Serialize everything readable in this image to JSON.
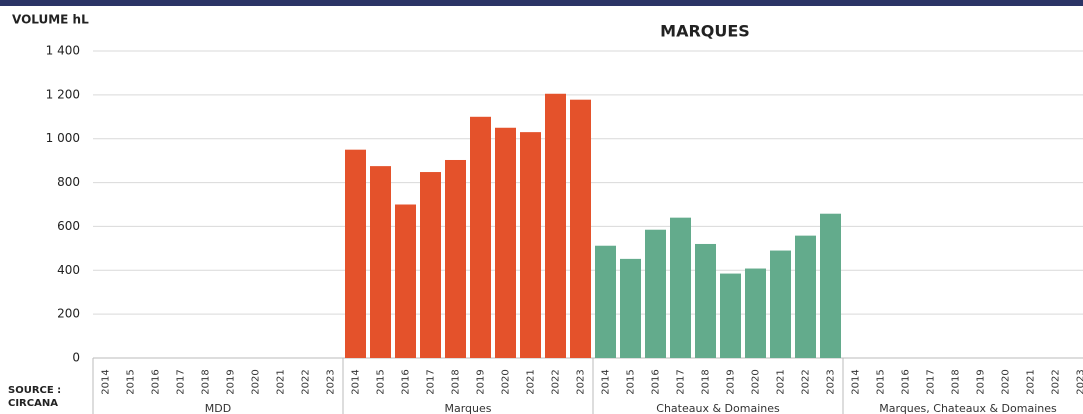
{
  "chart_data": {
    "type": "bar",
    "title": "MARQUES",
    "y_label": "VOLUME hL",
    "source": "SOURCE : CIRCANA",
    "ylim": [
      0,
      1400
    ],
    "yticks": [
      0,
      200,
      400,
      600,
      800,
      {
        "value": 1000,
        "label": "1 000"
      },
      {
        "value": 1200,
        "label": "1 200"
      },
      {
        "value": 1400,
        "label": "1 400"
      }
    ],
    "grid": true,
    "groups": [
      {
        "label": "MDD",
        "color": "#e4522b",
        "categories": [
          "2014",
          "2015",
          "2016",
          "2017",
          "2018",
          "2019",
          "2020",
          "2021",
          "2022",
          "2023"
        ],
        "values": [
          null,
          null,
          null,
          null,
          null,
          null,
          null,
          null,
          null,
          null
        ]
      },
      {
        "label": "Marques",
        "color": "#e4522b",
        "categories": [
          "2014",
          "2015",
          "2016",
          "2017",
          "2018",
          "2019",
          "2020",
          "2021",
          "2022",
          "2023"
        ],
        "values": [
          950,
          875,
          700,
          848,
          903,
          1100,
          1050,
          1030,
          1205,
          1178
        ]
      },
      {
        "label": "Chateaux & Domaines",
        "color": "#63ab8c",
        "categories": [
          "2014",
          "2015",
          "2016",
          "2017",
          "2018",
          "2019",
          "2020",
          "2021",
          "2022",
          "2023"
        ],
        "values": [
          512,
          452,
          585,
          640,
          520,
          385,
          408,
          490,
          558,
          658
        ]
      },
      {
        "label": "Marques, Chateaux & Domaines",
        "color": "#63ab8c",
        "categories": [
          "2014",
          "2015",
          "2016",
          "2017",
          "2018",
          "2019",
          "2020",
          "2021",
          "2022",
          "2023"
        ],
        "values": [
          null,
          null,
          null,
          null,
          null,
          null,
          null,
          null,
          null,
          null
        ]
      }
    ]
  }
}
